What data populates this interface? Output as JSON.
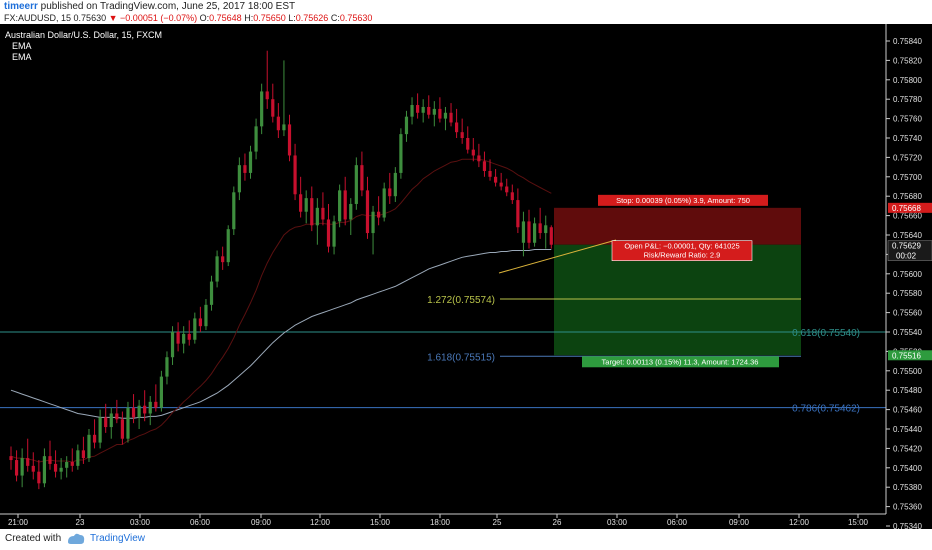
{
  "header": {
    "author": "timeerr",
    "published_text": " published on TradingView.com, June 25, 2017 18:00 EST",
    "symbol_line": "FX:AUDUSD, 15",
    "last": "0.75630",
    "change": "−0.00051 (−0.07%)",
    "o_label": "O:",
    "o": "0.75648",
    "h_label": "H:",
    "h": "0.75650",
    "l_label": "L:",
    "l": "0.75626",
    "c_label": "C:",
    "c": "0.75630"
  },
  "legend": {
    "title": "Australian Dollar/U.S. Dollar, 15, FXCM",
    "ema1": "EMA",
    "ema2": "EMA"
  },
  "footer": {
    "created_with": "Created with",
    "brand": "TradingView"
  },
  "colors": {
    "background": "#000000",
    "up": "#3e8e3e",
    "down": "#c8102e",
    "ema_fast": "#5a1010",
    "ema_slow": "#9aa8b8",
    "stop_zone": "#6a0d0d",
    "target_zone": "#0d4a12",
    "fib_1272": "#b8c24a",
    "fib_618": "#2e8f8a",
    "fib_1618": "#4a78b8",
    "fib_786": "#3a72c0"
  },
  "chart_data": {
    "type": "candlestick",
    "title": "Australian Dollar/U.S. Dollar, 15, FXCM",
    "y_ticks": [
      "0.75840",
      "0.75820",
      "0.75800",
      "0.75780",
      "0.75760",
      "0.75740",
      "0.75720",
      "0.75700",
      "0.75680",
      "0.75660",
      "0.75640",
      "0.75620",
      "0.75600",
      "0.75580",
      "0.75560",
      "0.75540",
      "0.75520",
      "0.75500",
      "0.75480",
      "0.75460",
      "0.75440",
      "0.75420",
      "0.75400",
      "0.75380",
      "0.75360",
      "0.75340"
    ],
    "ylim": [
      0.75335,
      0.75855
    ],
    "x_ticks": [
      "21:00",
      "23",
      "03:00",
      "06:00",
      "09:00",
      "12:00",
      "15:00",
      "18:00",
      "25",
      "26",
      "03:00",
      "06:00",
      "09:00",
      "12:00",
      "15:00"
    ],
    "candles": [
      [
        0.75412,
        0.75422,
        0.75398,
        0.75408
      ],
      [
        0.75408,
        0.75418,
        0.75386,
        0.75392
      ],
      [
        0.75392,
        0.7542,
        0.7538,
        0.7541
      ],
      [
        0.7541,
        0.7543,
        0.75396,
        0.75402
      ],
      [
        0.75402,
        0.75416,
        0.75388,
        0.75396
      ],
      [
        0.75396,
        0.75408,
        0.75378,
        0.75384
      ],
      [
        0.75384,
        0.7542,
        0.7538,
        0.75412
      ],
      [
        0.75412,
        0.75428,
        0.75398,
        0.75404
      ],
      [
        0.75404,
        0.75418,
        0.7539,
        0.75396
      ],
      [
        0.75396,
        0.7541,
        0.75388,
        0.754
      ],
      [
        0.754,
        0.75412,
        0.7539,
        0.75406
      ],
      [
        0.75406,
        0.7542,
        0.75396,
        0.75402
      ],
      [
        0.75402,
        0.75424,
        0.75398,
        0.75418
      ],
      [
        0.75418,
        0.75432,
        0.75404,
        0.7541
      ],
      [
        0.7541,
        0.7544,
        0.75406,
        0.75434
      ],
      [
        0.75434,
        0.7545,
        0.7542,
        0.75426
      ],
      [
        0.75426,
        0.7546,
        0.7542,
        0.75452
      ],
      [
        0.75452,
        0.75466,
        0.75436,
        0.75442
      ],
      [
        0.75442,
        0.75462,
        0.7543,
        0.75456
      ],
      [
        0.75456,
        0.7547,
        0.75446,
        0.7545
      ],
      [
        0.7545,
        0.75458,
        0.75424,
        0.7543
      ],
      [
        0.7543,
        0.75468,
        0.75426,
        0.75462
      ],
      [
        0.75462,
        0.75476,
        0.75446,
        0.75452
      ],
      [
        0.75452,
        0.7547,
        0.7544,
        0.75464
      ],
      [
        0.75464,
        0.7548,
        0.75448,
        0.75456
      ],
      [
        0.75456,
        0.75474,
        0.75444,
        0.75468
      ],
      [
        0.75468,
        0.75486,
        0.75458,
        0.75462
      ],
      [
        0.75462,
        0.755,
        0.75458,
        0.75494
      ],
      [
        0.75494,
        0.7552,
        0.75486,
        0.75514
      ],
      [
        0.75514,
        0.75546,
        0.75506,
        0.7554
      ],
      [
        0.7554,
        0.7555,
        0.7552,
        0.75528
      ],
      [
        0.75528,
        0.75546,
        0.75518,
        0.75538
      ],
      [
        0.75538,
        0.75552,
        0.75526,
        0.75532
      ],
      [
        0.75532,
        0.7556,
        0.75528,
        0.75554
      ],
      [
        0.75554,
        0.75566,
        0.7554,
        0.75546
      ],
      [
        0.75546,
        0.75574,
        0.75542,
        0.75568
      ],
      [
        0.75568,
        0.75598,
        0.75562,
        0.75592
      ],
      [
        0.75592,
        0.75624,
        0.75586,
        0.75618
      ],
      [
        0.75618,
        0.75628,
        0.75604,
        0.75612
      ],
      [
        0.75612,
        0.7565,
        0.75608,
        0.75646
      ],
      [
        0.75646,
        0.7569,
        0.7564,
        0.75684
      ],
      [
        0.75684,
        0.7572,
        0.75676,
        0.75712
      ],
      [
        0.75712,
        0.75724,
        0.75696,
        0.75704
      ],
      [
        0.75704,
        0.75732,
        0.75698,
        0.75726
      ],
      [
        0.75726,
        0.7576,
        0.75718,
        0.75752
      ],
      [
        0.75752,
        0.75796,
        0.75744,
        0.75788
      ],
      [
        0.75788,
        0.7583,
        0.7577,
        0.7578
      ],
      [
        0.7578,
        0.75796,
        0.75756,
        0.75762
      ],
      [
        0.75762,
        0.75776,
        0.7574,
        0.75748
      ],
      [
        0.75748,
        0.7582,
        0.75742,
        0.75754
      ],
      [
        0.75754,
        0.75764,
        0.75716,
        0.75722
      ],
      [
        0.75722,
        0.75734,
        0.75676,
        0.75682
      ],
      [
        0.75682,
        0.757,
        0.75658,
        0.75664
      ],
      [
        0.75664,
        0.75686,
        0.75652,
        0.75678
      ],
      [
        0.75678,
        0.7569,
        0.75644,
        0.7565
      ],
      [
        0.7565,
        0.75678,
        0.7563,
        0.75668
      ],
      [
        0.75668,
        0.75684,
        0.7565,
        0.75656
      ],
      [
        0.75656,
        0.75672,
        0.75622,
        0.75628
      ],
      [
        0.75628,
        0.7566,
        0.7562,
        0.75654
      ],
      [
        0.75654,
        0.75692,
        0.75648,
        0.75686
      ],
      [
        0.75686,
        0.757,
        0.7565,
        0.75656
      ],
      [
        0.75656,
        0.75678,
        0.7564,
        0.75672
      ],
      [
        0.75672,
        0.7572,
        0.75666,
        0.75712
      ],
      [
        0.75712,
        0.75726,
        0.7568,
        0.75686
      ],
      [
        0.75686,
        0.757,
        0.75636,
        0.75642
      ],
      [
        0.75642,
        0.7567,
        0.7562,
        0.75664
      ],
      [
        0.75664,
        0.7568,
        0.7565,
        0.75658
      ],
      [
        0.75658,
        0.75694,
        0.75654,
        0.75688
      ],
      [
        0.75688,
        0.75704,
        0.75672,
        0.7568
      ],
      [
        0.7568,
        0.7571,
        0.75674,
        0.75704
      ],
      [
        0.75704,
        0.7575,
        0.75698,
        0.75744
      ],
      [
        0.75744,
        0.75768,
        0.75736,
        0.75762
      ],
      [
        0.75762,
        0.75782,
        0.75754,
        0.75774
      ],
      [
        0.75774,
        0.75786,
        0.7576,
        0.75766
      ],
      [
        0.75766,
        0.7578,
        0.75756,
        0.75772
      ],
      [
        0.75772,
        0.75784,
        0.7576,
        0.75764
      ],
      [
        0.75764,
        0.75778,
        0.75752,
        0.7577
      ],
      [
        0.7577,
        0.75782,
        0.75756,
        0.7576
      ],
      [
        0.7576,
        0.75772,
        0.75748,
        0.75766
      ],
      [
        0.75766,
        0.75776,
        0.75752,
        0.75756
      ],
      [
        0.75756,
        0.7577,
        0.7574,
        0.75746
      ],
      [
        0.75746,
        0.7576,
        0.75734,
        0.7574
      ],
      [
        0.7574,
        0.75752,
        0.75724,
        0.75728
      ],
      [
        0.75728,
        0.7574,
        0.75716,
        0.75722
      ],
      [
        0.75722,
        0.75734,
        0.7571,
        0.75716
      ],
      [
        0.75716,
        0.75726,
        0.757,
        0.75706
      ],
      [
        0.75706,
        0.75718,
        0.75696,
        0.757
      ],
      [
        0.757,
        0.75708,
        0.7569,
        0.75694
      ],
      [
        0.75694,
        0.75704,
        0.75686,
        0.7569
      ],
      [
        0.7569,
        0.75698,
        0.7568,
        0.75684
      ],
      [
        0.75684,
        0.75692,
        0.75672,
        0.75676
      ],
      [
        0.75676,
        0.75688,
        0.75642,
        0.75648
      ],
      [
        0.75632,
        0.75664,
        0.75618,
        0.75654
      ],
      [
        0.75654,
        0.75666,
        0.75626,
        0.75632
      ],
      [
        0.75632,
        0.75658,
        0.75628,
        0.75652
      ],
      [
        0.75652,
        0.75668,
        0.75636,
        0.75642
      ],
      [
        0.75642,
        0.7566,
        0.75626,
        0.7565
      ],
      [
        0.75648,
        0.7565,
        0.75626,
        0.7563
      ]
    ],
    "ema_fast": [
      0.75412,
      0.7541,
      0.7541,
      0.75409,
      0.75408,
      0.75406,
      0.75407,
      0.75408,
      0.75407,
      0.75407,
      0.75407,
      0.75406,
      0.75408,
      0.75408,
      0.75411,
      0.75412,
      0.75415,
      0.75418,
      0.75421,
      0.75424,
      0.75424,
      0.75428,
      0.7543,
      0.75433,
      0.75435,
      0.75438,
      0.7544,
      0.75444,
      0.7545,
      0.75457,
      0.75462,
      0.75468,
      0.75473,
      0.75479,
      0.75484,
      0.7549,
      0.75497,
      0.75506,
      0.75514,
      0.75523,
      0.75534,
      0.75547,
      0.75558,
      0.7557,
      0.75583,
      0.75598,
      0.75611,
      0.75622,
      0.75631,
      0.7564,
      0.75645,
      0.75648,
      0.75649,
      0.75651,
      0.75651,
      0.75652,
      0.75652,
      0.75651,
      0.75651,
      0.75653,
      0.75653,
      0.75655,
      0.75659,
      0.75661,
      0.7566,
      0.7566,
      0.7566,
      0.75662,
      0.75664,
      0.75667,
      0.75673,
      0.7568,
      0.75687,
      0.75692,
      0.75698,
      0.75702,
      0.75706,
      0.75709,
      0.75712,
      0.75715,
      0.75716,
      0.75718,
      0.75718,
      0.75718,
      0.75718,
      0.75717,
      0.75715,
      0.75713,
      0.75711,
      0.75709,
      0.75706,
      0.75702,
      0.75699,
      0.75695,
      0.75692,
      0.75689,
      0.75686,
      0.75683
    ],
    "ema_slow": [
      0.7548,
      0.75478,
      0.75476,
      0.75474,
      0.75472,
      0.7547,
      0.75468,
      0.75466,
      0.75464,
      0.75462,
      0.7546,
      0.75458,
      0.75456,
      0.75455,
      0.75454,
      0.75453,
      0.75452,
      0.75452,
      0.75452,
      0.75452,
      0.75451,
      0.75451,
      0.75451,
      0.75452,
      0.75452,
      0.75453,
      0.75453,
      0.75454,
      0.75456,
      0.75458,
      0.7546,
      0.75462,
      0.75464,
      0.75466,
      0.75468,
      0.75471,
      0.75474,
      0.75477,
      0.75481,
      0.75485,
      0.7549,
      0.75495,
      0.755,
      0.75505,
      0.75511,
      0.75517,
      0.75523,
      0.75529,
      0.75534,
      0.75539,
      0.75543,
      0.75547,
      0.7555,
      0.75553,
      0.75556,
      0.75558,
      0.7556,
      0.75562,
      0.75564,
      0.75566,
      0.75568,
      0.7557,
      0.75573,
      0.75575,
      0.75577,
      0.75579,
      0.75581,
      0.75583,
      0.75585,
      0.75587,
      0.7559,
      0.75593,
      0.75596,
      0.75599,
      0.75602,
      0.75605,
      0.75607,
      0.75609,
      0.75611,
      0.75613,
      0.75615,
      0.75617,
      0.75618,
      0.75619,
      0.7562,
      0.75621,
      0.75622,
      0.75622,
      0.75623,
      0.75623,
      0.75624,
      0.75624,
      0.75624,
      0.75624,
      0.75625,
      0.75625,
      0.75625,
      0.75625
    ],
    "price_label": "0.75629",
    "countdown": "00:02",
    "stop_label": "0.75668",
    "target_label": "0.75516",
    "position": {
      "entry": 0.7563,
      "stop": 0.75668,
      "target": 0.75516,
      "stop_text": "Stop: 0.00039 (0.05%) 3.9, Amount: 750",
      "pnl_text": "Open P&L: −0.00001, Qty: 641025",
      "rr_text": "Risk/Reward Ratio: 2.9",
      "target_text": "Target: 0.00113 (0.15%) 11.3, Amount: 1724.36"
    },
    "fib_lines": [
      {
        "label": "1.272(0.75574)",
        "value": 0.75574
      },
      {
        "label": "0.618(0.75540)",
        "value": 0.7554
      },
      {
        "label": "1.618(0.75515)",
        "value": 0.75515
      },
      {
        "label": "0.786(0.75462)",
        "value": 0.75462
      }
    ]
  }
}
